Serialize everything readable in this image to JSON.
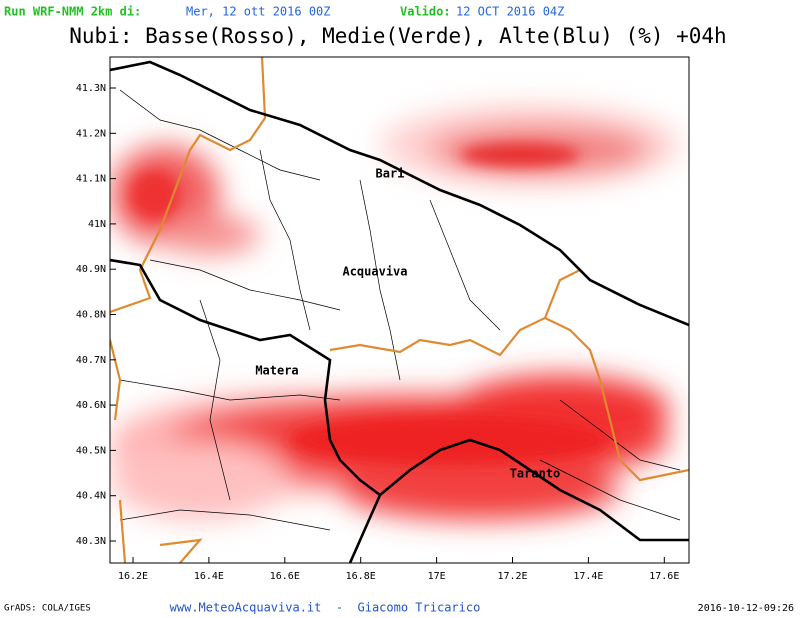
{
  "header": {
    "run_label": "Run WRF-NMM 2km di:",
    "run_date": "Mer, 12 ott 2016 00Z",
    "valid_label": "Valido:",
    "valid_date": "12 OCT 2016 04Z"
  },
  "title": "Nubi: Basse(Rosso), Medie(Verde), Alte(Blu) (%) +04h",
  "map": {
    "lat_labels": [
      "41.3N",
      "41.2N",
      "41.1N",
      "41N",
      "40.9N",
      "40.8N",
      "40.7N",
      "40.6N",
      "40.5N",
      "40.4N",
      "40.3N"
    ],
    "lon_labels": [
      "16.2E",
      "16.4E",
      "16.6E",
      "16.8E",
      "17E",
      "17.2E",
      "17.4E",
      "17.6E"
    ],
    "places": [
      "Bari",
      "Acquaviva",
      "Matera",
      "Taranto"
    ]
  },
  "footer": {
    "left": "GrADS: COLA/IGES",
    "center": "www.MeteoAcquaviva.it  -  Giacomo Tricarico",
    "right": "2016-10-12-09:26"
  }
}
